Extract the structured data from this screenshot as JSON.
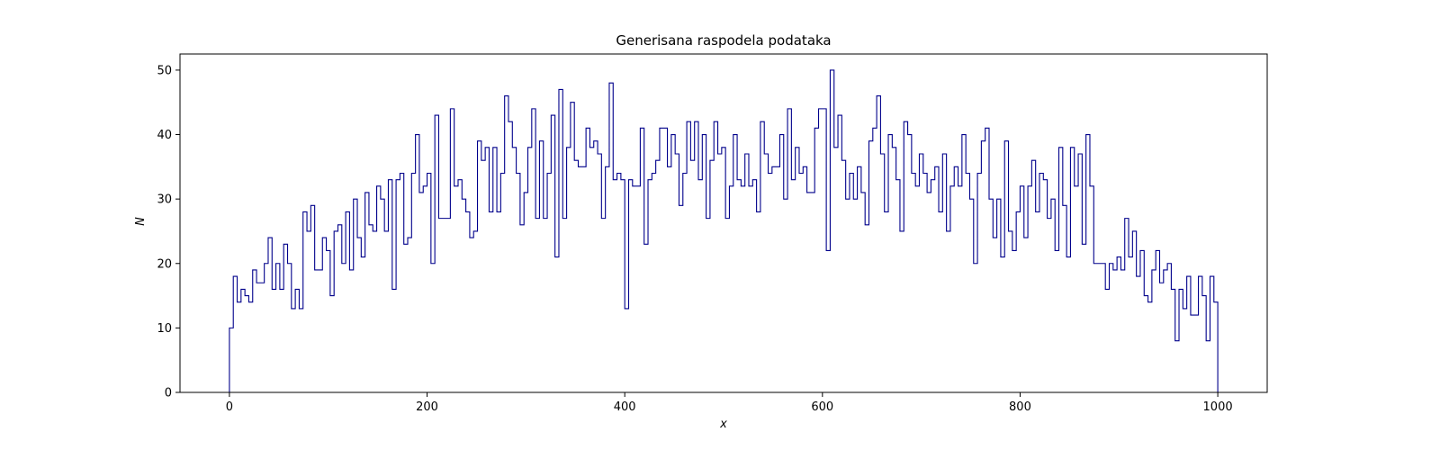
{
  "chart_data": {
    "type": "histogram",
    "title": "Generisana raspodela podataka",
    "xlabel": "x",
    "ylabel": "N",
    "xlim": [
      -50,
      1050
    ],
    "ylim": [
      0,
      52.5
    ],
    "xticks": [
      0,
      200,
      400,
      600,
      800,
      1000
    ],
    "yticks": [
      0,
      10,
      20,
      30,
      40,
      50
    ],
    "grid": false,
    "line_color": "#00008b",
    "bin_start": 0,
    "bin_end": 1000,
    "series": [
      {
        "values": [
          10,
          18,
          14,
          16,
          15,
          14,
          19,
          17,
          17,
          20,
          24,
          16,
          20,
          16,
          23,
          20,
          13,
          16,
          13,
          28,
          25,
          29,
          19,
          19,
          24,
          22,
          15,
          25,
          26,
          20,
          28,
          19,
          30,
          24,
          21,
          31,
          26,
          25,
          32,
          30,
          25,
          33,
          16,
          33,
          34,
          23,
          24,
          34,
          40,
          31,
          32,
          34,
          20,
          43,
          27,
          27,
          27,
          44,
          32,
          33,
          30,
          28,
          24,
          25,
          39,
          36,
          38,
          28,
          38,
          28,
          34,
          46,
          42,
          38,
          34,
          26,
          31,
          38,
          44,
          27,
          39,
          27,
          34,
          43,
          21,
          47,
          27,
          38,
          45,
          36,
          35,
          35,
          41,
          38,
          39,
          37,
          27,
          35,
          48,
          33,
          34,
          33,
          13,
          33,
          32,
          32,
          41,
          23,
          33,
          34,
          36,
          41,
          41,
          35,
          40,
          37,
          29,
          34,
          42,
          36,
          42,
          33,
          40,
          27,
          36,
          42,
          37,
          38,
          27,
          32,
          40,
          33,
          32,
          37,
          32,
          33,
          28,
          42,
          37,
          34,
          35,
          35,
          40,
          30,
          44,
          33,
          38,
          34,
          35,
          31,
          31,
          41,
          44,
          44,
          22,
          50,
          38,
          43,
          36,
          30,
          34,
          30,
          35,
          31,
          26,
          39,
          41,
          46,
          37,
          28,
          40,
          38,
          33,
          25,
          42,
          40,
          34,
          32,
          37,
          34,
          31,
          33,
          35,
          28,
          37,
          25,
          32,
          35,
          32,
          40,
          34,
          30,
          20,
          34,
          39,
          41,
          30,
          24,
          30,
          21,
          39,
          25,
          22,
          28,
          32,
          24,
          32,
          36,
          28,
          34,
          33,
          27,
          30,
          22,
          38,
          29,
          21,
          38,
          32,
          37,
          23,
          40,
          32,
          20,
          20,
          20,
          16,
          20,
          19,
          21,
          19,
          27,
          21,
          25,
          18,
          22,
          15,
          14,
          19,
          22,
          17,
          19,
          20,
          16,
          8,
          16,
          13,
          18,
          12,
          12,
          18,
          15,
          8,
          18,
          14
        ]
      }
    ]
  }
}
